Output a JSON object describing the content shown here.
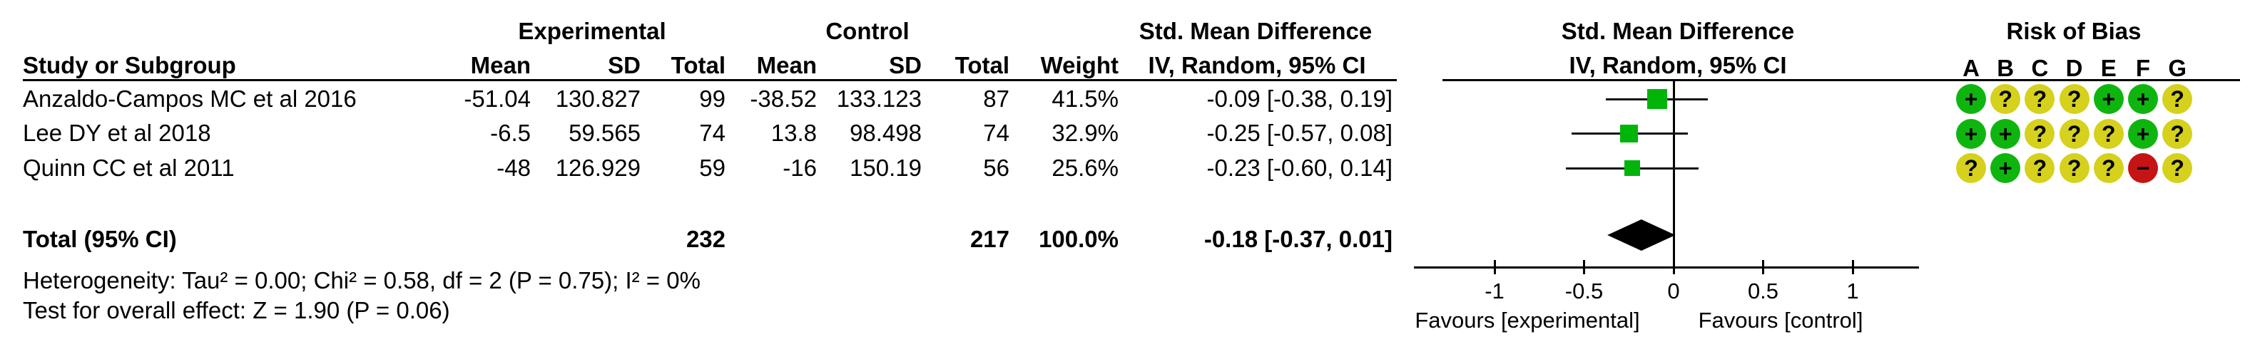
{
  "header": {
    "study_col": "Study or Subgroup",
    "groups": {
      "experimental": "Experimental",
      "control": "Control"
    },
    "subcols": {
      "mean": "Mean",
      "sd": "SD",
      "total": "Total",
      "weight": "Weight"
    },
    "effect_text_col": {
      "line1": "Std. Mean Difference",
      "line2": "IV, Random, 95% CI"
    },
    "effect_plot_col": {
      "line1": "Std. Mean Difference",
      "line2": "IV, Random, 95% CI"
    },
    "risk_of_bias": {
      "title": "Risk of Bias",
      "domains": [
        "A",
        "B",
        "C",
        "D",
        "E",
        "F",
        "G"
      ]
    }
  },
  "studies": [
    {
      "name": "Anzaldo-Campos MC et al 2016",
      "exp_mean": "-51.04",
      "exp_sd": "130.827",
      "exp_total": "99",
      "ctl_mean": "-38.52",
      "ctl_sd": "133.123",
      "ctl_total": "87",
      "weight": "41.5%",
      "ci_text": "-0.09 [-0.38, 0.19]"
    },
    {
      "name": "Lee DY et al 2018",
      "exp_mean": "-6.5",
      "exp_sd": "59.565",
      "exp_total": "74",
      "ctl_mean": "13.8",
      "ctl_sd": "98.498",
      "ctl_total": "74",
      "weight": "32.9%",
      "ci_text": "-0.25 [-0.57, 0.08]"
    },
    {
      "name": "Quinn CC et al 2011",
      "exp_mean": "-48",
      "exp_sd": "126.929",
      "exp_total": "59",
      "ctl_mean": "-16",
      "ctl_sd": "150.19",
      "ctl_total": "56",
      "weight": "25.6%",
      "ci_text": "-0.23 [-0.60, 0.14]"
    }
  ],
  "total_row": {
    "label": "Total (95% CI)",
    "exp_total": "232",
    "ctl_total": "217",
    "weight": "100.0%",
    "ci_text": "-0.18 [-0.37, 0.01]"
  },
  "footnotes": {
    "heterogeneity": "Heterogeneity: Tau² = 0.00; Chi² = 0.58, df = 2 (P = 0.75); I² = 0%",
    "overall_effect": "Test for overall effect: Z = 1.90 (P = 0.06)"
  },
  "axis": {
    "tick_values": [
      -1,
      -0.5,
      0,
      0.5,
      1
    ],
    "tick_labels": [
      "-1",
      "-0.5",
      "0",
      "0.5",
      "1"
    ],
    "favours_left": "Favours [experimental]",
    "favours_right": "Favours [control]"
  },
  "colors": {
    "marker_green": "#00b40a",
    "rob_low": "#0fb50f",
    "rob_unclear": "#d5d11c",
    "rob_high": "#c51414",
    "line_black": "#000000"
  },
  "chart_data": {
    "type": "forest",
    "effect_measure": "Std. Mean Difference",
    "model": "IV, Random, 95% CI",
    "studies": [
      {
        "name": "Anzaldo-Campos MC et al 2016",
        "experimental": {
          "mean": -51.04,
          "sd": 130.827,
          "total": 99
        },
        "control": {
          "mean": -38.52,
          "sd": 133.123,
          "total": 87
        },
        "weight_pct": 41.5,
        "smd": -0.09,
        "ci": [
          -0.38,
          0.19
        ],
        "risk_of_bias": [
          "+",
          "?",
          "?",
          "?",
          "+",
          "+",
          "?"
        ]
      },
      {
        "name": "Lee DY et al 2018",
        "experimental": {
          "mean": -6.5,
          "sd": 59.565,
          "total": 74
        },
        "control": {
          "mean": 13.8,
          "sd": 98.498,
          "total": 74
        },
        "weight_pct": 32.9,
        "smd": -0.25,
        "ci": [
          -0.57,
          0.08
        ],
        "risk_of_bias": [
          "+",
          "+",
          "?",
          "?",
          "?",
          "+",
          "?"
        ]
      },
      {
        "name": "Quinn CC et al 2011",
        "experimental": {
          "mean": -48,
          "sd": 126.929,
          "total": 59
        },
        "control": {
          "mean": -16,
          "sd": 150.19,
          "total": 56
        },
        "weight_pct": 25.6,
        "smd": -0.23,
        "ci": [
          -0.6,
          0.14
        ],
        "risk_of_bias": [
          "?",
          "+",
          "?",
          "?",
          "?",
          "-",
          "?"
        ]
      }
    ],
    "total": {
      "label": "Total (95% CI)",
      "exp_total": 232,
      "ctl_total": 217,
      "weight_pct": 100.0,
      "smd": -0.18,
      "ci": [
        -0.37,
        0.01
      ]
    },
    "heterogeneity": {
      "tau2": 0.0,
      "chi2": 0.58,
      "df": 2,
      "p": 0.75,
      "i2_pct": 0
    },
    "overall_effect": {
      "z": 1.9,
      "p": 0.06
    },
    "xlim": [
      -1.45,
      1.37
    ],
    "x_ticks": [
      -1,
      -0.5,
      0,
      0.5,
      1
    ],
    "favours": [
      "Favours [experimental]",
      "Favours [control]"
    ],
    "legend_position": "none",
    "grid": false
  }
}
